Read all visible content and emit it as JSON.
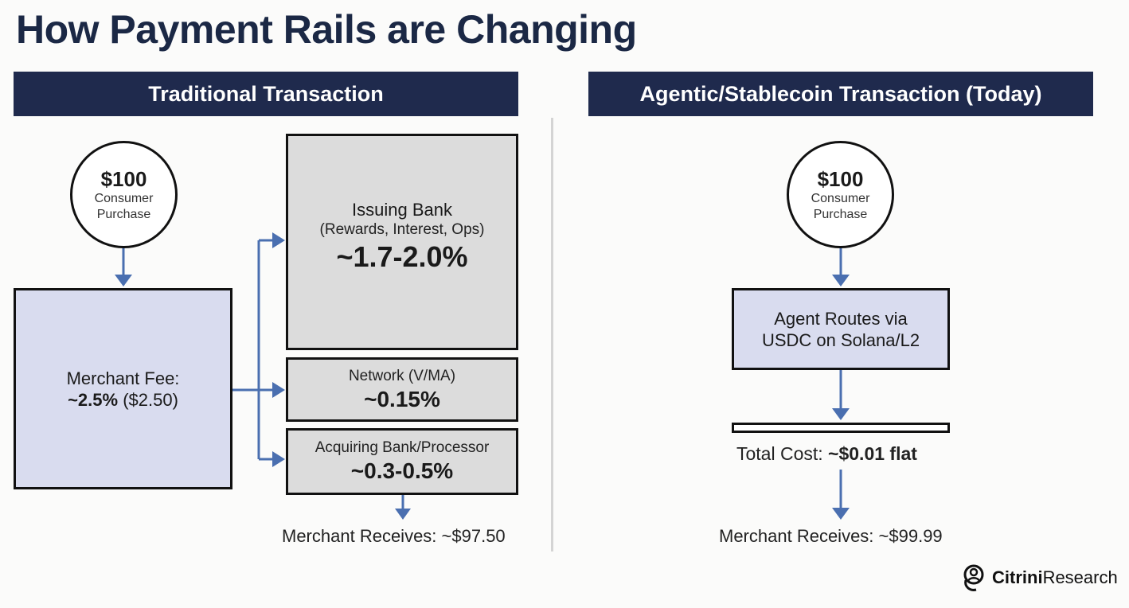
{
  "title": "How Payment Rails are Changing",
  "left": {
    "header": "Traditional Transaction",
    "purchase": {
      "amount": "$100",
      "label_line1": "Consumer",
      "label_line2": "Purchase"
    },
    "merchant_fee": {
      "label": "Merchant Fee:",
      "pct": "~2.5%",
      "amount": " ($2.50)"
    },
    "issuing": {
      "label": "Issuing Bank",
      "detail": "(Rewards, Interest, Ops)",
      "value": "~1.7-2.0%"
    },
    "network": {
      "label": "Network (V/MA)",
      "value": "~0.15%"
    },
    "acquiring": {
      "label": "Acquiring Bank/Processor",
      "value": "~0.3-0.5%"
    },
    "receives": "Merchant Receives: ~$97.50"
  },
  "right": {
    "header": "Agentic/Stablecoin Transaction (Today)",
    "purchase": {
      "amount": "$100",
      "label_line1": "Consumer",
      "label_line2": "Purchase"
    },
    "route": {
      "line1": "Agent Routes via",
      "line2": "USDC on Solana/L2"
    },
    "total_label": "Total Cost: ",
    "total_value": "~$0.01 flat",
    "receives": "Merchant Receives: ~$99.99"
  },
  "brand": {
    "bold": "Citrini",
    "regular": "Research",
    "icon": "citrini-logo-icon"
  },
  "colors": {
    "navy": "#1f2a4d",
    "arrow": "#4a6fb0",
    "merchant_fill": "#d9dcef",
    "grey_fill": "#dcdcdc"
  }
}
